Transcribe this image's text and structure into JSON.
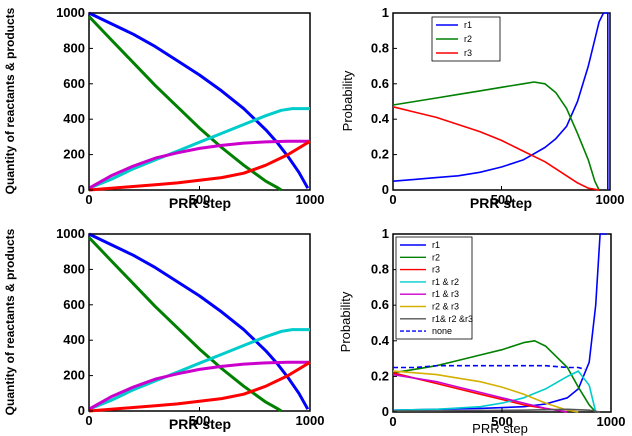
{
  "chart_data": [
    {
      "type": "line",
      "xlabel": "PRR step",
      "ylabel": "Quantity of reactants & products",
      "xlim": [
        0,
        1000
      ],
      "ylim": [
        0,
        1000
      ],
      "xticks": [
        "0",
        "500",
        "1000"
      ],
      "yticks": [
        "0",
        "200",
        "400",
        "600",
        "800",
        "1000"
      ],
      "series": [
        {
          "color": "#0000ff",
          "x": [
            0,
            100,
            200,
            300,
            400,
            500,
            600,
            700,
            800,
            850,
            900,
            950,
            990
          ],
          "y": [
            1000,
            940,
            880,
            810,
            730,
            650,
            560,
            460,
            340,
            270,
            190,
            100,
            10
          ]
        },
        {
          "color": "#008000",
          "x": [
            0,
            100,
            200,
            300,
            400,
            500,
            600,
            700,
            800,
            850,
            870
          ],
          "y": [
            980,
            850,
            720,
            590,
            470,
            350,
            240,
            140,
            50,
            15,
            0
          ]
        },
        {
          "color": "#00cccc",
          "x": [
            0,
            100,
            200,
            300,
            400,
            500,
            600,
            700,
            800,
            870,
            920,
            1000
          ],
          "y": [
            10,
            60,
            120,
            170,
            220,
            270,
            320,
            370,
            420,
            450,
            460,
            460
          ]
        },
        {
          "color": "#cc00cc",
          "x": [
            0,
            100,
            200,
            300,
            400,
            500,
            600,
            700,
            800,
            900,
            1000
          ],
          "y": [
            10,
            80,
            135,
            180,
            210,
            235,
            252,
            265,
            272,
            275,
            275
          ]
        },
        {
          "color": "#ff0000",
          "x": [
            0,
            100,
            200,
            300,
            400,
            500,
            600,
            700,
            800,
            900,
            1000
          ],
          "y": [
            0,
            10,
            20,
            30,
            40,
            55,
            70,
            95,
            140,
            200,
            275
          ]
        }
      ]
    },
    {
      "type": "line",
      "xlabel": "PRR step",
      "ylabel": "Probability",
      "xlim": [
        0,
        1000
      ],
      "ylim": [
        0,
        1
      ],
      "xticks": [
        "0",
        "500",
        "1000"
      ],
      "yticks": [
        "0",
        "0.2",
        "0.4",
        "0.6",
        "0.8",
        "1"
      ],
      "legend": [
        "r1",
        "r2",
        "r3"
      ],
      "series": [
        {
          "name": "r1",
          "color": "#0000ff",
          "x": [
            0,
            100,
            200,
            300,
            400,
            500,
            600,
            700,
            750,
            800,
            850,
            900,
            930,
            950,
            970,
            990,
            990
          ],
          "y": [
            0.05,
            0.06,
            0.07,
            0.08,
            0.1,
            0.13,
            0.17,
            0.24,
            0.29,
            0.36,
            0.5,
            0.7,
            0.85,
            0.95,
            1,
            1,
            0
          ]
        },
        {
          "name": "r2",
          "color": "#008000",
          "x": [
            0,
            100,
            200,
            300,
            400,
            500,
            600,
            650,
            700,
            750,
            800,
            850,
            900,
            930,
            950
          ],
          "y": [
            0.48,
            0.5,
            0.52,
            0.54,
            0.56,
            0.58,
            0.6,
            0.61,
            0.6,
            0.55,
            0.46,
            0.32,
            0.17,
            0.05,
            0
          ]
        },
        {
          "name": "r3",
          "color": "#ff0000",
          "x": [
            0,
            100,
            200,
            300,
            400,
            500,
            600,
            700,
            800,
            850,
            900,
            950
          ],
          "y": [
            0.47,
            0.44,
            0.41,
            0.37,
            0.33,
            0.28,
            0.22,
            0.16,
            0.08,
            0.04,
            0.01,
            0
          ]
        }
      ]
    },
    {
      "type": "line",
      "xlabel": "PRR step",
      "ylabel": "Quantity of reactants & products",
      "xlim": [
        0,
        1000
      ],
      "ylim": [
        0,
        1000
      ],
      "xticks": [
        "0",
        "500",
        "1000"
      ],
      "yticks": [
        "0",
        "200",
        "400",
        "600",
        "800",
        "1000"
      ],
      "series": [
        {
          "color": "#0000ff",
          "x": [
            0,
            100,
            200,
            300,
            400,
            500,
            600,
            700,
            800,
            850,
            900,
            950,
            990
          ],
          "y": [
            1000,
            940,
            880,
            810,
            730,
            650,
            560,
            460,
            340,
            270,
            190,
            100,
            10
          ]
        },
        {
          "color": "#008000",
          "x": [
            0,
            100,
            200,
            300,
            400,
            500,
            600,
            700,
            800,
            850,
            870
          ],
          "y": [
            980,
            850,
            720,
            590,
            470,
            350,
            240,
            140,
            50,
            15,
            0
          ]
        },
        {
          "color": "#00cccc",
          "x": [
            0,
            100,
            200,
            300,
            400,
            500,
            600,
            700,
            800,
            870,
            920,
            1000
          ],
          "y": [
            10,
            60,
            120,
            170,
            220,
            270,
            320,
            370,
            420,
            450,
            460,
            460
          ]
        },
        {
          "color": "#cc00cc",
          "x": [
            0,
            100,
            200,
            300,
            400,
            500,
            600,
            700,
            800,
            900,
            1000
          ],
          "y": [
            10,
            80,
            135,
            180,
            210,
            235,
            252,
            265,
            272,
            275,
            275
          ]
        },
        {
          "color": "#ff0000",
          "x": [
            0,
            100,
            200,
            300,
            400,
            500,
            600,
            700,
            800,
            900,
            1000
          ],
          "y": [
            0,
            10,
            20,
            30,
            40,
            55,
            70,
            95,
            140,
            200,
            275
          ]
        }
      ]
    },
    {
      "type": "line",
      "xlabel": "PRR step",
      "ylabel": "Probability",
      "xlim": [
        0,
        1000
      ],
      "ylim": [
        0,
        1
      ],
      "xticks": [
        "0",
        "500",
        "1000"
      ],
      "yticks": [
        "0",
        "0.2",
        "0.4",
        "0.6",
        "0.8",
        "1"
      ],
      "legend": [
        "r1",
        "r2",
        "r3",
        "r1 & r2",
        "r1 & r3",
        "r2 & r3",
        "r1& r2 &r3",
        "none"
      ],
      "series": [
        {
          "name": "r1",
          "color": "#0000ff",
          "x": [
            0,
            200,
            400,
            600,
            700,
            800,
            850,
            900,
            930,
            950,
            960,
            980
          ],
          "y": [
            0.01,
            0.015,
            0.02,
            0.03,
            0.045,
            0.08,
            0.13,
            0.28,
            0.6,
            1,
            1,
            1
          ]
        },
        {
          "name": "r2",
          "color": "#008000",
          "x": [
            0,
            100,
            200,
            300,
            400,
            500,
            600,
            650,
            700,
            800,
            850,
            900,
            930
          ],
          "y": [
            0.22,
            0.24,
            0.26,
            0.29,
            0.32,
            0.35,
            0.39,
            0.4,
            0.37,
            0.25,
            0.14,
            0.04,
            0
          ]
        },
        {
          "name": "r3",
          "color": "#ff0000",
          "x": [
            0,
            100,
            200,
            300,
            400,
            500,
            600,
            700,
            750,
            800
          ],
          "y": [
            0.22,
            0.19,
            0.16,
            0.13,
            0.1,
            0.07,
            0.04,
            0.02,
            0.01,
            0
          ]
        },
        {
          "name": "r1 & r2",
          "color": "#00cccc",
          "x": [
            0,
            200,
            400,
            500,
            600,
            700,
            800,
            850,
            900,
            930
          ],
          "y": [
            0.01,
            0.015,
            0.03,
            0.05,
            0.08,
            0.13,
            0.2,
            0.23,
            0.15,
            0
          ]
        },
        {
          "name": "r1 & r3",
          "color": "#cc00cc",
          "x": [
            0,
            100,
            200,
            300,
            400,
            500,
            600,
            700,
            800
          ],
          "y": [
            0.21,
            0.19,
            0.17,
            0.14,
            0.11,
            0.08,
            0.05,
            0.02,
            0
          ]
        },
        {
          "name": "r2 & r3",
          "color": "#d4b000",
          "x": [
            0,
            100,
            200,
            300,
            400,
            500,
            600,
            700,
            800,
            850
          ],
          "y": [
            0.23,
            0.22,
            0.21,
            0.19,
            0.17,
            0.14,
            0.1,
            0.05,
            0.01,
            0
          ]
        },
        {
          "name": "r1& r2 &r3",
          "color": "#555555",
          "x": [
            0,
            200,
            400,
            600,
            800,
            900,
            950
          ],
          "y": [
            0.005,
            0.006,
            0.008,
            0.01,
            0.015,
            0.01,
            0
          ]
        },
        {
          "name": "none",
          "color": "#0000ff",
          "dashed": true,
          "x": [
            0,
            100,
            200,
            300,
            400,
            500,
            600,
            700,
            800,
            850,
            880
          ],
          "y": [
            0.25,
            0.25,
            0.26,
            0.26,
            0.26,
            0.26,
            0.26,
            0.26,
            0.25,
            0.25,
            0.24
          ]
        }
      ]
    }
  ]
}
